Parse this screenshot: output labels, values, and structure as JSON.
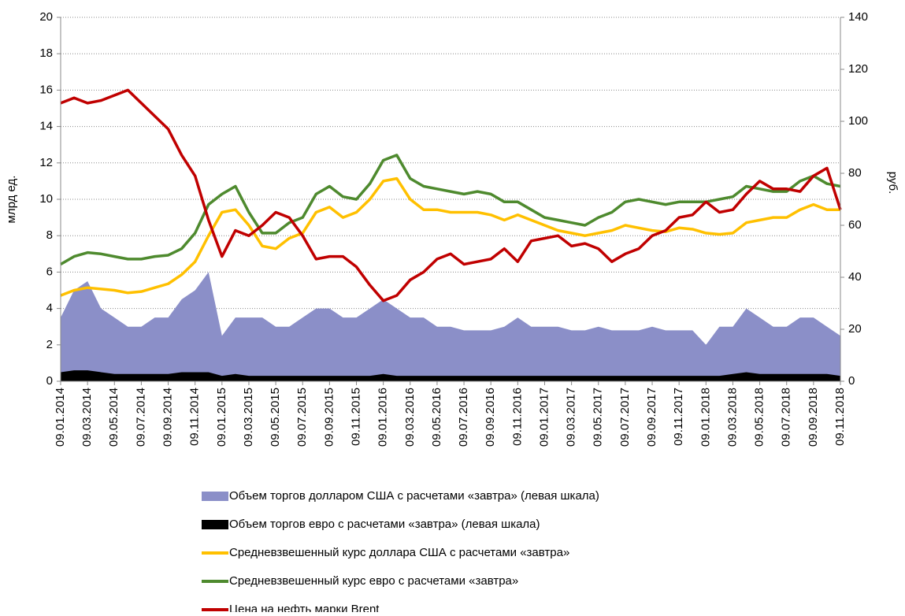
{
  "chart_data": {
    "type": "line",
    "ylabel": "млрд ед.",
    "y2label": "руб.",
    "categories": [
      "09.01.2014",
      null,
      "09.03.2014",
      null,
      "09.05.2014",
      null,
      "09.07.2014",
      null,
      "09.09.2014",
      null,
      "09.11.2014",
      null,
      "09.01.2015",
      null,
      "09.03.2015",
      null,
      "09.05.2015",
      null,
      "09.07.2015",
      null,
      "09.09.2015",
      null,
      "09.11.2015",
      null,
      "09.01.2016",
      null,
      "09.03.2016",
      null,
      "09.05.2016",
      null,
      "09.07.2016",
      null,
      "09.09.2016",
      null,
      "09.11.2016",
      null,
      "09.01.2017",
      null,
      "09.03.2017",
      null,
      "09.05.2017",
      null,
      "09.07.2017",
      null,
      "09.09.2017",
      null,
      "09.11.2017",
      null,
      "09.01.2018",
      null,
      "09.03.2018",
      null,
      "09.05.2018",
      null,
      "09.07.2018",
      null,
      "09.09.2018",
      null,
      "09.11.2018"
    ],
    "ylim": [
      0,
      20
    ],
    "yticks": [
      0,
      2,
      4,
      6,
      8,
      10,
      12,
      14,
      16,
      18,
      20
    ],
    "y2lim": [
      0,
      140
    ],
    "y2ticks": [
      0,
      20,
      40,
      60,
      80,
      100,
      120,
      140
    ],
    "grid": true,
    "series": [
      {
        "name": "Объем торгов долларом США с расчетами «завтра» (левая шкала)",
        "kind": "area",
        "color": "#8b8fc8",
        "values": [
          3.5,
          5,
          5.5,
          4,
          3.5,
          3,
          3,
          3.5,
          3.5,
          4.5,
          5,
          6,
          2.5,
          3.5,
          3.5,
          3.5,
          3,
          3,
          3.5,
          4,
          4,
          3.5,
          3.5,
          4,
          4.5,
          4,
          3.5,
          3.5,
          3,
          3,
          2.8,
          2.8,
          2.8,
          3,
          3.5,
          3,
          3,
          3,
          2.8,
          2.8,
          3,
          2.8,
          2.8,
          2.8,
          3,
          2.8,
          2.8,
          2.8,
          2,
          3,
          3,
          4,
          3.5,
          3,
          3,
          3.5,
          3.5,
          3,
          2.5
        ]
      },
      {
        "name": "Объем торгов евро с расчетами «завтра» (левая шкала)",
        "kind": "area",
        "color": "#000000",
        "values": [
          0.5,
          0.6,
          0.6,
          0.5,
          0.4,
          0.4,
          0.4,
          0.4,
          0.4,
          0.5,
          0.5,
          0.5,
          0.3,
          0.4,
          0.3,
          0.3,
          0.3,
          0.3,
          0.3,
          0.3,
          0.3,
          0.3,
          0.3,
          0.3,
          0.4,
          0.3,
          0.3,
          0.3,
          0.3,
          0.3,
          0.3,
          0.3,
          0.3,
          0.3,
          0.3,
          0.3,
          0.3,
          0.3,
          0.3,
          0.3,
          0.3,
          0.3,
          0.3,
          0.3,
          0.3,
          0.3,
          0.3,
          0.3,
          0.3,
          0.3,
          0.4,
          0.5,
          0.4,
          0.4,
          0.4,
          0.4,
          0.4,
          0.4,
          0.3
        ]
      },
      {
        "name": "Средневзвешенный  курс доллара США с расчетами «завтра»",
        "kind": "line",
        "axis": "y2",
        "color": "#ffc000",
        "values": [
          33,
          35,
          36,
          35.5,
          35,
          34,
          34.5,
          36,
          37.5,
          41,
          46,
          56,
          65,
          66,
          60,
          52,
          51,
          55,
          57,
          65,
          67,
          63,
          65,
          70,
          77,
          78,
          70,
          66,
          66,
          65,
          65,
          65,
          64,
          62,
          64,
          62,
          60,
          58,
          57,
          56,
          57,
          58,
          60,
          59,
          58,
          57.5,
          59,
          58.5,
          57,
          56.5,
          57,
          61,
          62,
          63,
          63,
          66,
          68,
          66,
          66
        ]
      },
      {
        "name": "Средневзвешенный  курс евро с расчетами «завтра»",
        "kind": "line",
        "axis": "y2",
        "color": "#4e8a2e",
        "values": [
          45,
          48,
          49.5,
          49,
          48,
          47,
          47,
          48,
          48.5,
          51,
          57,
          68,
          72,
          75,
          65,
          57,
          57,
          61,
          63,
          72,
          75,
          71,
          70,
          76,
          85,
          87,
          78,
          75,
          74,
          73,
          72,
          73,
          72,
          69,
          69,
          66,
          63,
          62,
          61,
          60,
          63,
          65,
          69,
          70,
          69,
          68,
          69,
          69,
          69,
          70,
          71,
          75,
          74,
          73,
          73,
          77,
          79,
          76,
          75
        ]
      },
      {
        "name": "Цена на нефть марки Brent",
        "kind": "line",
        "axis": "y2",
        "color": "#c00000",
        "values": [
          107,
          109,
          107,
          108,
          110,
          112,
          107,
          102,
          97,
          87,
          79,
          62,
          48,
          58,
          56,
          60,
          65,
          63,
          56,
          47,
          48,
          48,
          44,
          37,
          31,
          33,
          39,
          42,
          47,
          49,
          45,
          46,
          47,
          51,
          46,
          54,
          55,
          56,
          52,
          53,
          51,
          46,
          49,
          51,
          56,
          58,
          63,
          64,
          69,
          65,
          66,
          72,
          77,
          74,
          74,
          73,
          79,
          82,
          66
        ]
      }
    ]
  }
}
